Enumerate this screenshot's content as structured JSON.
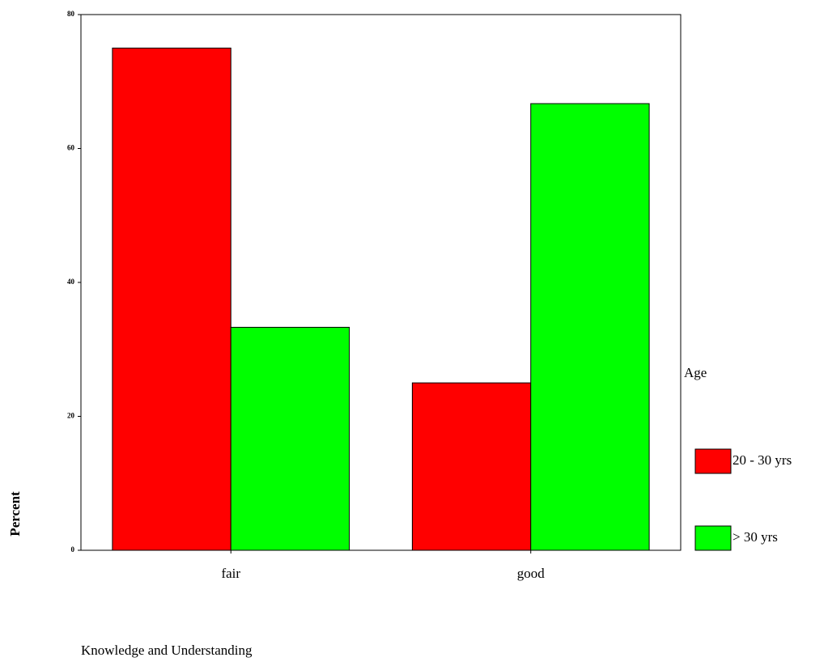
{
  "chart_data": {
    "type": "bar",
    "categories": [
      "fair",
      "good"
    ],
    "series": [
      {
        "name": "20 - 30 yrs",
        "color": "#ff0000",
        "values": [
          75,
          25
        ]
      },
      {
        "name": "> 30 yrs",
        "color": "#00ff00",
        "values": [
          33.3,
          66.7
        ]
      }
    ],
    "ylim": [
      0,
      80
    ],
    "yticks": [
      0,
      20,
      40,
      60,
      80
    ],
    "y_label": "Percent",
    "x_label": "Knowledge and Understanding",
    "legend_title": "Age",
    "legend_position": "right"
  }
}
